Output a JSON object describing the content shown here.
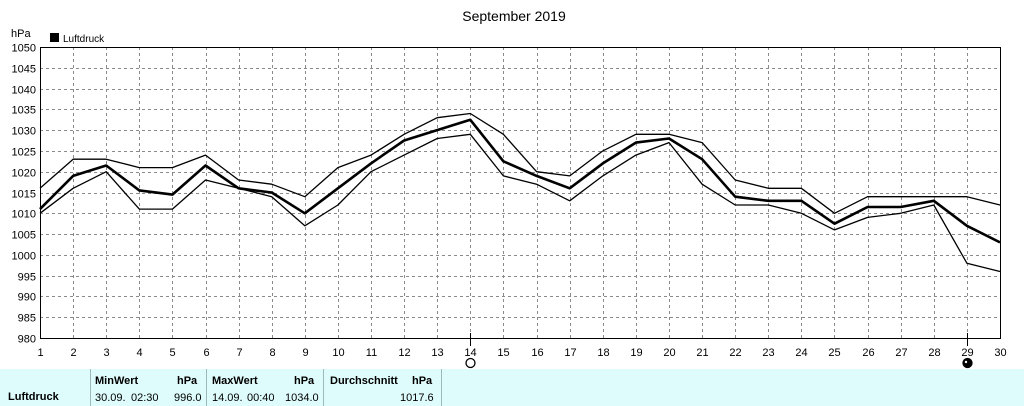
{
  "chart_data": {
    "type": "line",
    "title": "September 2019",
    "ylabel": "hPa",
    "legend": {
      "placement": "top-left",
      "entries": [
        "Luftdruck"
      ]
    },
    "grid": true,
    "ylim": [
      980,
      1050
    ],
    "yticks": [
      980,
      985,
      990,
      995,
      1000,
      1005,
      1010,
      1015,
      1020,
      1025,
      1030,
      1035,
      1040,
      1045,
      1050
    ],
    "xlim": [
      1,
      30
    ],
    "x": [
      1,
      2,
      3,
      4,
      5,
      6,
      7,
      8,
      9,
      10,
      11,
      12,
      13,
      14,
      15,
      16,
      17,
      18,
      19,
      20,
      21,
      22,
      23,
      24,
      25,
      26,
      27,
      28,
      29,
      30
    ],
    "series": [
      {
        "name": "Luftdruck",
        "role": "mean",
        "values": [
          1011,
          1019,
          1021.5,
          1015.5,
          1014.5,
          1021.5,
          1016,
          1015,
          1010,
          1016,
          1022,
          1027.5,
          1030,
          1032.5,
          1022.5,
          1019,
          1016,
          1022,
          1027,
          1028,
          1023,
          1014,
          1013,
          1013,
          1007.5,
          1011.5,
          1011.5,
          1013,
          1007,
          1003
        ]
      },
      {
        "role": "max",
        "values": [
          1016,
          1023,
          1023,
          1021,
          1021,
          1024,
          1018,
          1017,
          1014,
          1021,
          1024,
          1029,
          1033,
          1034,
          1029,
          1020,
          1019,
          1025,
          1029,
          1029,
          1027,
          1018,
          1016,
          1016,
          1010,
          1014,
          1014,
          1014,
          1014,
          1012
        ]
      },
      {
        "role": "min",
        "values": [
          1010,
          1016,
          1020,
          1011,
          1011,
          1018,
          1016,
          1014,
          1007,
          1012,
          1020,
          1024,
          1028,
          1029,
          1019,
          1017,
          1013,
          1019,
          1024,
          1027,
          1017,
          1012,
          1012,
          1010,
          1006,
          1009,
          1010,
          1012,
          998,
          996
        ]
      }
    ],
    "moon_markers": [
      {
        "x": 14,
        "phase": "full-moon"
      },
      {
        "x": 29,
        "phase": "new-moon"
      }
    ]
  },
  "footer": {
    "series_label": "Luftdruck",
    "min": {
      "header": "MinWert",
      "unit": "hPa",
      "date": "30.09.",
      "time": "02:30",
      "value": "996.0"
    },
    "max": {
      "header": "MaxWert",
      "unit": "hPa",
      "date": "14.09.",
      "time": "00:40",
      "value": "1034.0"
    },
    "avg": {
      "header": "Durchschnitt",
      "unit": "hPa",
      "value": "1017.6"
    }
  }
}
